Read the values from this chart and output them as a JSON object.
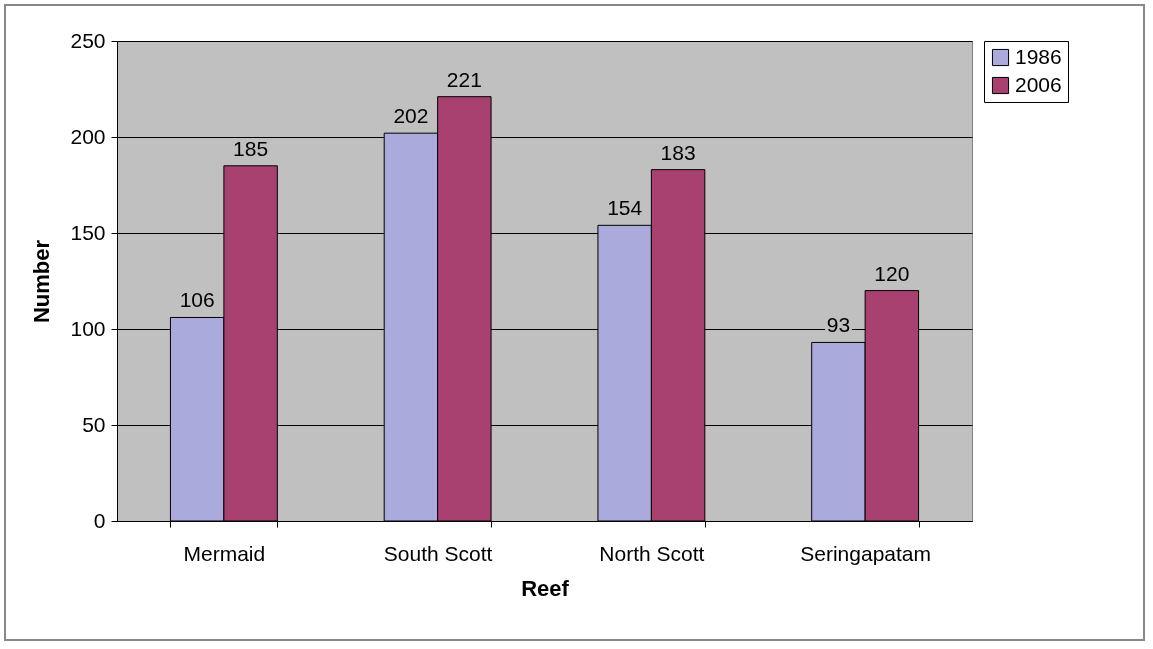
{
  "chart_data": {
    "type": "bar",
    "xlabel": "Reef",
    "ylabel": "Number",
    "categories": [
      "Mermaid",
      "South Scott",
      "North Scott",
      "Seringapatam"
    ],
    "series": [
      {
        "name": "1986",
        "color": "#aaaadc",
        "values": [
          106,
          202,
          154,
          93
        ]
      },
      {
        "name": "2006",
        "color": "#a8416f",
        "values": [
          185,
          221,
          183,
          120
        ]
      }
    ],
    "ylim": [
      0,
      250
    ],
    "yticks": [
      0,
      50,
      100,
      150,
      200,
      250
    ],
    "grid": "y",
    "legend": "right",
    "data_labels": true
  }
}
